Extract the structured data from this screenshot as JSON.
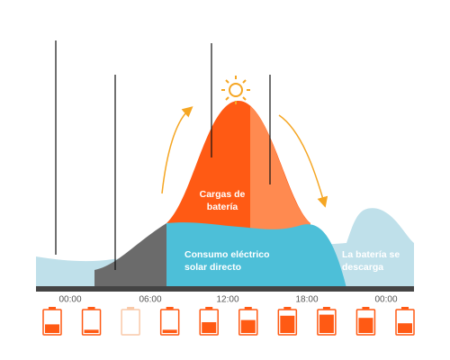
{
  "time_labels": [
    "00:00",
    "06:00",
    "12:00",
    "18:00",
    "00:00"
  ],
  "charging_label": [
    "Cargas de",
    "batería"
  ],
  "consumption_label": [
    "Consumo eléctrico",
    "solar directo"
  ],
  "discharge_label": [
    "La batería se",
    "descarga"
  ],
  "battery_levels": [
    40,
    15,
    0,
    15,
    50,
    60,
    80,
    85,
    70,
    45
  ]
}
